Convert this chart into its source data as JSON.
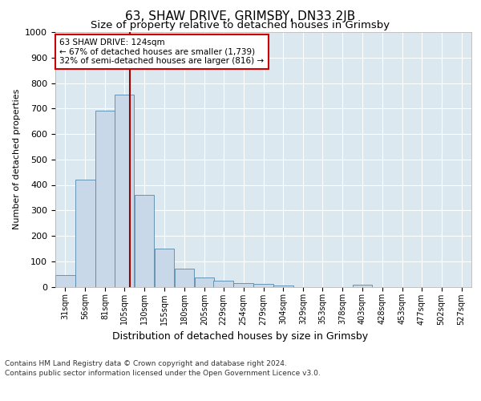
{
  "title": "63, SHAW DRIVE, GRIMSBY, DN33 2JB",
  "subtitle": "Size of property relative to detached houses in Grimsby",
  "xlabel": "Distribution of detached houses by size in Grimsby",
  "ylabel": "Number of detached properties",
  "footer_line1": "Contains HM Land Registry data © Crown copyright and database right 2024.",
  "footer_line2": "Contains public sector information licensed under the Open Government Licence v3.0.",
  "annotation_line1": "63 SHAW DRIVE: 124sqm",
  "annotation_line2": "← 67% of detached houses are smaller (1,739)",
  "annotation_line3": "32% of semi-detached houses are larger (816) →",
  "bar_color": "#c8d8e8",
  "bar_edge_color": "#5588aa",
  "vline_color": "#990000",
  "vline_x": 124,
  "bins_left": [
    31,
    56,
    81,
    105,
    130,
    155,
    180,
    205,
    229,
    254,
    279,
    304,
    329,
    353,
    378,
    403,
    428,
    453,
    477,
    502,
    527
  ],
  "bin_width": 25,
  "bar_heights": [
    45,
    420,
    690,
    755,
    360,
    150,
    70,
    37,
    25,
    15,
    10,
    5,
    0,
    0,
    0,
    8,
    0,
    0,
    0,
    0,
    0
  ],
  "xlim": [
    31,
    552
  ],
  "ylim": [
    0,
    1000
  ],
  "yticks": [
    0,
    100,
    200,
    300,
    400,
    500,
    600,
    700,
    800,
    900,
    1000
  ],
  "xtick_labels": [
    "31sqm",
    "56sqm",
    "81sqm",
    "105sqm",
    "130sqm",
    "155sqm",
    "180sqm",
    "205sqm",
    "229sqm",
    "254sqm",
    "279sqm",
    "304sqm",
    "329sqm",
    "353sqm",
    "378sqm",
    "403sqm",
    "428sqm",
    "453sqm",
    "477sqm",
    "502sqm",
    "527sqm"
  ],
  "background_color": "#dce8f0",
  "fig_background": "#ffffff",
  "title_fontsize": 11,
  "subtitle_fontsize": 9.5
}
